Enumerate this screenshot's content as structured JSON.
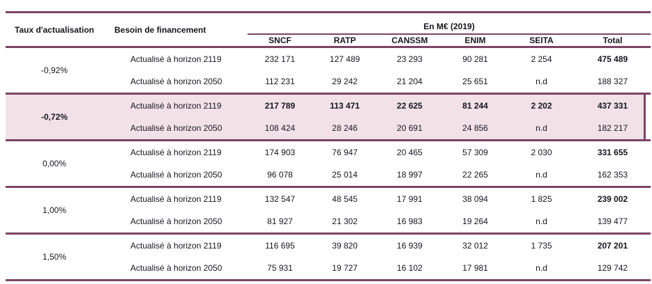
{
  "theme": {
    "accent_border_color": "#7b4465",
    "highlight_row_color": "#f2e1e7",
    "text_color": "#16161e"
  },
  "table": {
    "header": {
      "col1": "Taux d'actualisation",
      "col2": "Besoin de financement",
      "group_header": "En M€ (2019)",
      "columns": [
        "SNCF",
        "RATP",
        "CANSSM",
        "ENIM",
        "SEITA",
        "Total"
      ]
    },
    "groups": [
      {
        "rate": "-0,92%",
        "highlight": false,
        "rate_bold": false,
        "rows": [
          {
            "label": "Actualisé à horizon 2119",
            "emphasis": "total",
            "values": [
              "232 171",
              "127 489",
              "23 293",
              "90 281",
              "2 254",
              "475 489"
            ]
          },
          {
            "label": "Actualisé à horizon 2050",
            "emphasis": "none",
            "values": [
              "112 231",
              "29 242",
              "21 204",
              "25 651",
              "n.d",
              "188 327"
            ]
          }
        ]
      },
      {
        "rate": "-0,72%",
        "highlight": true,
        "rate_bold": true,
        "rows": [
          {
            "label": "Actualisé à horizon 2119",
            "emphasis": "row",
            "values": [
              "217 789",
              "113 471",
              "22 625",
              "81 244",
              "2 202",
              "437 331"
            ]
          },
          {
            "label": "Actualisé à horizon 2050",
            "emphasis": "none",
            "values": [
              "108 424",
              "28 246",
              "20 691",
              "24 856",
              "n.d",
              "182 217"
            ]
          }
        ]
      },
      {
        "rate": "0,00%",
        "highlight": false,
        "rate_bold": false,
        "rows": [
          {
            "label": "Actualisé à horizon 2119",
            "emphasis": "total",
            "values": [
              "174 903",
              "76 947",
              "20 465",
              "57 309",
              "2 030",
              "331 655"
            ]
          },
          {
            "label": "Actualisé à horizon 2050",
            "emphasis": "none",
            "values": [
              "96 078",
              "25 014",
              "18 997",
              "22 265",
              "n.d",
              "162 353"
            ]
          }
        ]
      },
      {
        "rate": "1,00%",
        "highlight": false,
        "rate_bold": false,
        "rows": [
          {
            "label": "Actualisé à horizon 2119",
            "emphasis": "total",
            "values": [
              "132 547",
              "48 545",
              "17 991",
              "38 094",
              "1 825",
              "239 002"
            ]
          },
          {
            "label": "Actualisé à horizon 2050",
            "emphasis": "none",
            "values": [
              "81 927",
              "21 302",
              "16 983",
              "19 264",
              "n.d",
              "139 477"
            ]
          }
        ]
      },
      {
        "rate": "1,50%",
        "highlight": false,
        "rate_bold": false,
        "rows": [
          {
            "label": "Actualisé à horizon 2119",
            "emphasis": "total",
            "values": [
              "116 695",
              "39 820",
              "16 939",
              "32 012",
              "1 735",
              "207 201"
            ]
          },
          {
            "label": "Actualisé à horizon 2050",
            "emphasis": "none",
            "values": [
              "75 931",
              "19 727",
              "16 102",
              "17 981",
              "n.d",
              "129 742"
            ]
          }
        ]
      }
    ]
  }
}
